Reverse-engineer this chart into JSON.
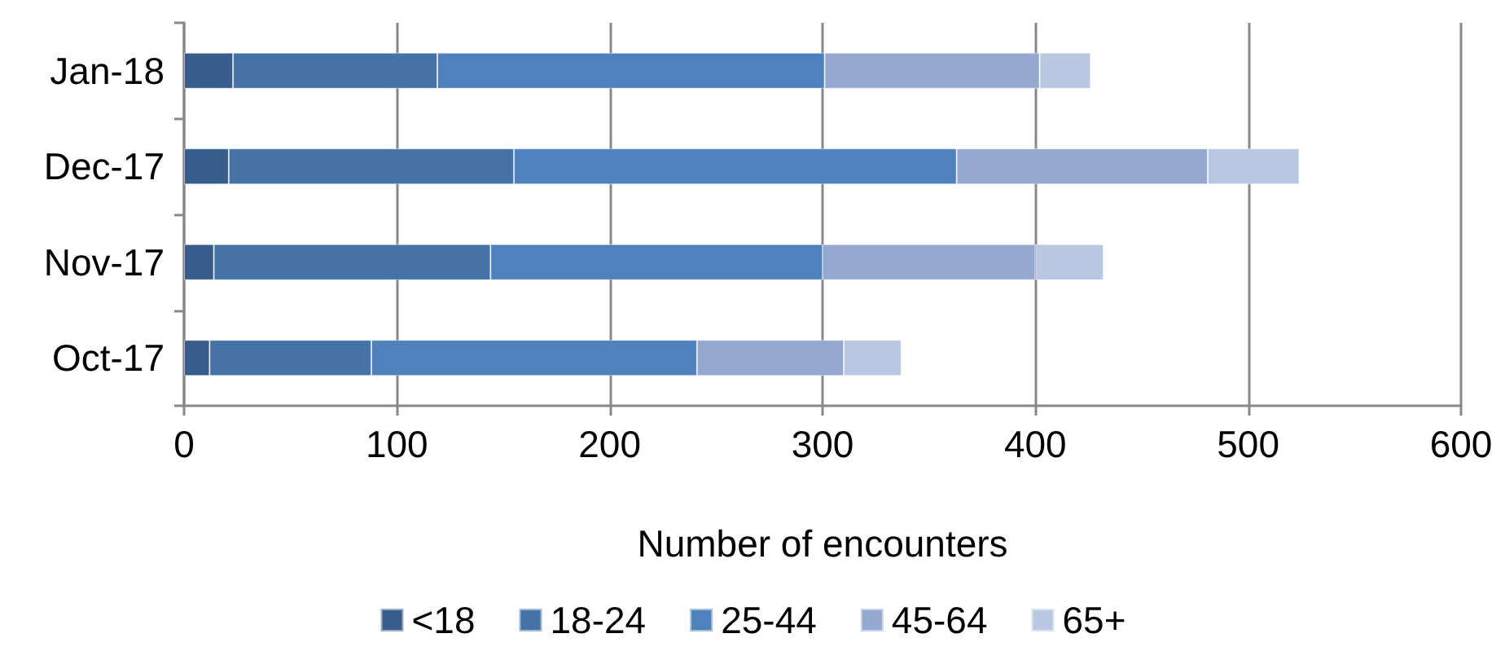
{
  "chart_data": {
    "type": "bar",
    "orientation": "horizontal",
    "stacked": true,
    "categories": [
      "Jan-18",
      "Dec-17",
      "Nov-17",
      "Oct-17"
    ],
    "series": [
      {
        "name": "<18",
        "color": "#385d8a",
        "values": [
          23,
          21,
          14,
          12
        ]
      },
      {
        "name": "18-24",
        "color": "#4572a7",
        "values": [
          96,
          134,
          130,
          76
        ]
      },
      {
        "name": "25-44",
        "color": "#4f81bd",
        "values": [
          182,
          208,
          156,
          153
        ]
      },
      {
        "name": "45-64",
        "color": "#95a9d0",
        "values": [
          101,
          118,
          100,
          69
        ]
      },
      {
        "name": "65+",
        "color": "#b9c7e1",
        "values": [
          24,
          43,
          32,
          27
        ]
      }
    ],
    "xlabel": "Number of encounters",
    "xlim": [
      0,
      600
    ],
    "xticks": [
      0,
      100,
      200,
      300,
      400,
      500,
      600
    ],
    "grid": "x",
    "legend": "bottom"
  }
}
